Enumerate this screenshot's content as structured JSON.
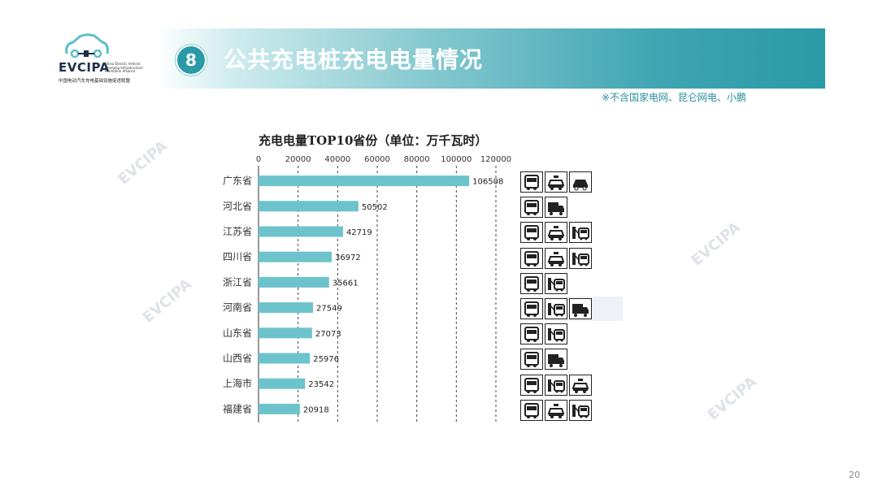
{
  "logo": {
    "brand": "EVCIPA",
    "small_text": "China Electric Vehicle Charging Infrastructure Promotion Alliance",
    "cn_name": "中国电动汽车充电基础设施促进联盟"
  },
  "header": {
    "badge": "8",
    "title": "公共充电桩充电电量情况",
    "note": "※不含国家电网、昆仑网电、小鹏"
  },
  "watermark": "EVCIPA",
  "page_number": "20",
  "chart_data": {
    "type": "bar",
    "orientation": "horizontal",
    "title": "充电电量TOP10省份（单位：万千瓦时）",
    "categories": [
      "广东省",
      "河北省",
      "江苏省",
      "四川省",
      "浙江省",
      "河南省",
      "山东省",
      "山西省",
      "上海市",
      "福建省"
    ],
    "values": [
      106508,
      50502,
      42719,
      36972,
      35661,
      27549,
      27073,
      25976,
      23542,
      20918
    ],
    "tick_labels": [
      "0",
      "20000",
      "40000",
      "60000",
      "80000",
      "100000",
      "120000"
    ],
    "xlim": [
      0,
      120000
    ],
    "bar_color": "#6cc3cc",
    "grid": "vertical-dashed",
    "axis_position": "top"
  },
  "vehicle_icons": [
    [
      "bus-icon",
      "taxi-icon",
      "car-icon"
    ],
    [
      "bus-icon",
      "truck-icon"
    ],
    [
      "bus-icon",
      "taxi-icon",
      "charger-car-icon"
    ],
    [
      "bus-icon",
      "taxi-icon",
      "charger-car-icon"
    ],
    [
      "bus-icon",
      "charger-car-icon"
    ],
    [
      "bus-icon",
      "charger-car-icon",
      "truck-icon"
    ],
    [
      "bus-icon",
      "charger-car-icon"
    ],
    [
      "bus-icon",
      "truck-icon"
    ],
    [
      "bus-icon",
      "charger-car-icon",
      "taxi-icon"
    ],
    [
      "bus-icon",
      "taxi-icon",
      "charger-car-icon"
    ]
  ]
}
